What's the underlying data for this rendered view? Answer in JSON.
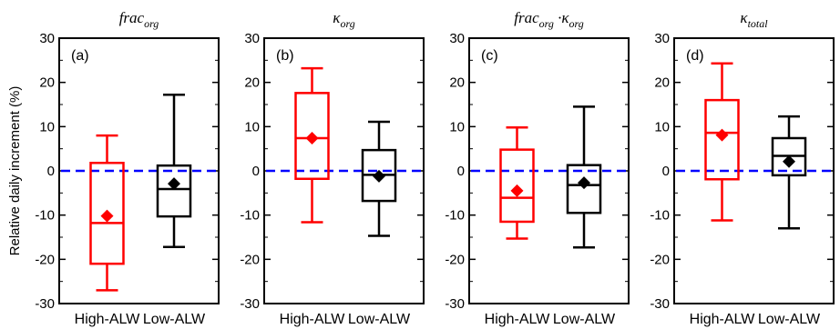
{
  "chart_data": {
    "type": "box",
    "ylabel": "Relative daily increment (%)",
    "ylim": [
      -30,
      30
    ],
    "yticks": [
      30,
      20,
      10,
      0,
      -10,
      -20,
      -30
    ],
    "categories": [
      "High-ALW",
      "Low-ALW"
    ],
    "reference_line": {
      "y": 0,
      "color": "#0000ff",
      "style": "dashed"
    },
    "colors": {
      "High-ALW": "#ff0000",
      "Low-ALW": "#000000"
    },
    "panels": [
      {
        "tag": "(a)",
        "title": {
          "base": "frac",
          "sub": "org",
          "mid": "",
          "base2": "",
          "sub2": ""
        },
        "boxes": [
          {
            "category": "High-ALW",
            "whisker_low": -27,
            "q1": -21,
            "median": -11.8,
            "q3": 1.8,
            "whisker_high": 8,
            "mean": -10.2
          },
          {
            "category": "Low-ALW",
            "whisker_low": -17.2,
            "q1": -10.3,
            "median": -4.1,
            "q3": 1.2,
            "whisker_high": 17.2,
            "mean": -2.9
          }
        ]
      },
      {
        "tag": "(b)",
        "title": {
          "base": "κ",
          "sub": "org",
          "mid": "",
          "base2": "",
          "sub2": ""
        },
        "boxes": [
          {
            "category": "High-ALW",
            "whisker_low": -11.6,
            "q1": -1.8,
            "median": 7.4,
            "q3": 17.6,
            "whisker_high": 23.2,
            "mean": 7.4
          },
          {
            "category": "Low-ALW",
            "whisker_low": -14.7,
            "q1": -6.8,
            "median": -0.9,
            "q3": 4.7,
            "whisker_high": 11.1,
            "mean": -1.2
          }
        ]
      },
      {
        "tag": "(c)",
        "title": {
          "base": "frac",
          "sub": "org",
          "mid": " ·",
          "base2": "κ",
          "sub2": "org"
        },
        "boxes": [
          {
            "category": "High-ALW",
            "whisker_low": -15.3,
            "q1": -11.5,
            "median": -6.1,
            "q3": 4.8,
            "whisker_high": 9.8,
            "mean": -4.5
          },
          {
            "category": "Low-ALW",
            "whisker_low": -17.3,
            "q1": -9.5,
            "median": -3.2,
            "q3": 1.3,
            "whisker_high": 14.5,
            "mean": -2.7
          }
        ]
      },
      {
        "tag": "(d)",
        "title": {
          "base": "κ",
          "sub": "total",
          "mid": "",
          "base2": "",
          "sub2": ""
        },
        "boxes": [
          {
            "category": "High-ALW",
            "whisker_low": -11.2,
            "q1": -1.9,
            "median": 8.6,
            "q3": 16,
            "whisker_high": 24.3,
            "mean": 8.1
          },
          {
            "category": "Low-ALW",
            "whisker_low": -13,
            "q1": -1,
            "median": 3.4,
            "q3": 7.4,
            "whisker_high": 12.3,
            "mean": 2.1
          }
        ]
      }
    ]
  }
}
